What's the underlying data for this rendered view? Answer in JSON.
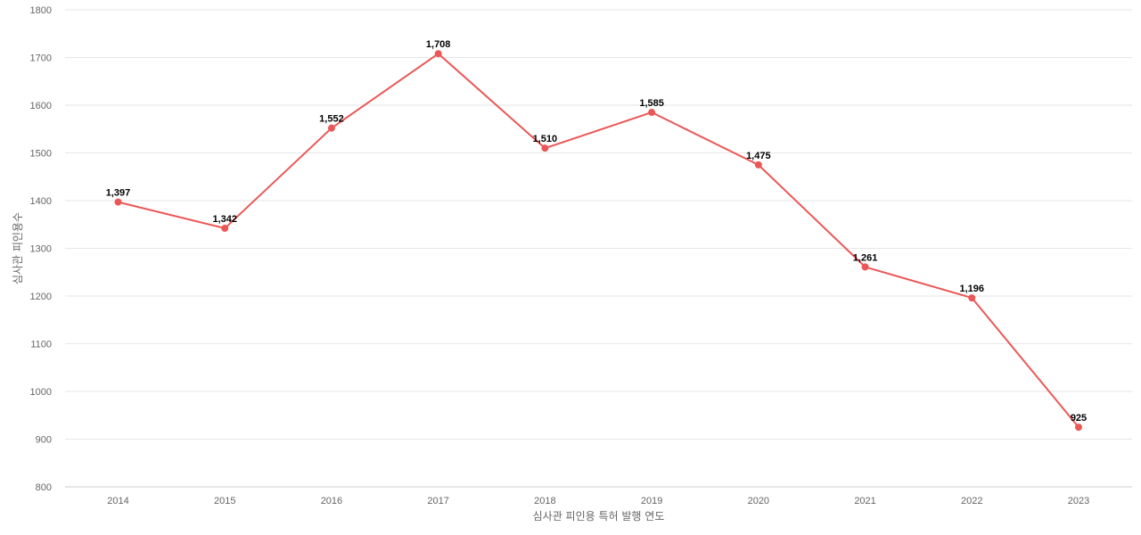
{
  "chart_data": {
    "type": "line",
    "title": "",
    "xlabel": "심사관 피인용 특허 발행 연도",
    "ylabel": "심사관 피인용수",
    "categories": [
      "2014",
      "2015",
      "2016",
      "2017",
      "2018",
      "2019",
      "2020",
      "2021",
      "2022",
      "2023"
    ],
    "series": [
      {
        "values": [
          1397,
          1342,
          1552,
          1708,
          1510,
          1585,
          1475,
          1261,
          1196,
          925
        ],
        "labels": [
          "1,397",
          "1,342",
          "1,552",
          "1,708",
          "1,510",
          "1,585",
          "1,475",
          "1,261",
          "1,196",
          "925"
        ],
        "color": "#eb5757"
      }
    ],
    "ylim": [
      800,
      1800
    ],
    "yticks": [
      800,
      900,
      1000,
      1100,
      1200,
      1300,
      1400,
      1500,
      1600,
      1700,
      1800
    ],
    "grid": true,
    "legend": "none"
  }
}
